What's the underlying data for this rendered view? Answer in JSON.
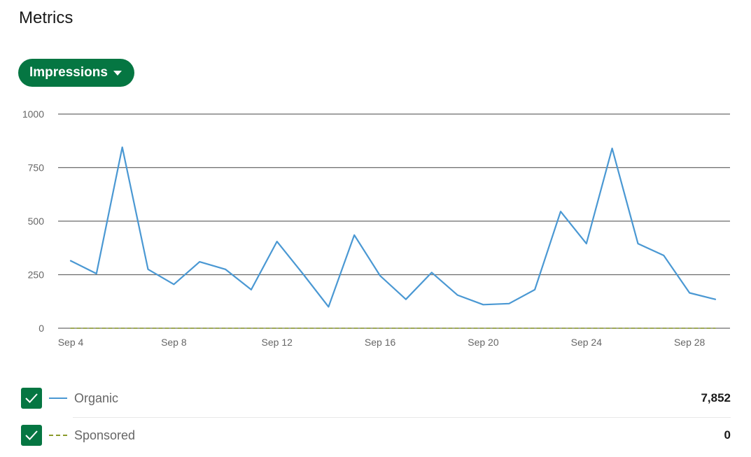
{
  "header": {
    "title": "Metrics"
  },
  "metric_selector": {
    "label": "Impressions",
    "icon": "caret-down-icon"
  },
  "colors": {
    "accent": "#057642",
    "organic": "#4a98d3",
    "sponsored": "#8a9a2a",
    "grid": "#6b6b6b"
  },
  "chart_data": {
    "type": "line",
    "title": "",
    "xlabel": "",
    "ylabel": "",
    "ylim": [
      0,
      1000
    ],
    "yticks": [
      0,
      250,
      500,
      750,
      1000
    ],
    "x": [
      "Sep 4",
      "Sep 5",
      "Sep 6",
      "Sep 7",
      "Sep 8",
      "Sep 9",
      "Sep 10",
      "Sep 11",
      "Sep 12",
      "Sep 13",
      "Sep 14",
      "Sep 15",
      "Sep 16",
      "Sep 17",
      "Sep 18",
      "Sep 19",
      "Sep 20",
      "Sep 21",
      "Sep 22",
      "Sep 23",
      "Sep 24",
      "Sep 25",
      "Sep 26",
      "Sep 27",
      "Sep 28",
      "Sep 29"
    ],
    "xticks": [
      "Sep 4",
      "Sep 8",
      "Sep 12",
      "Sep 16",
      "Sep 20",
      "Sep 24",
      "Sep 28"
    ],
    "grid": true,
    "series": [
      {
        "name": "Organic",
        "style": "solid",
        "values": [
          315,
          255,
          845,
          275,
          205,
          310,
          275,
          180,
          405,
          255,
          100,
          435,
          245,
          135,
          260,
          155,
          110,
          115,
          180,
          545,
          395,
          840,
          395,
          340,
          165,
          135
        ]
      },
      {
        "name": "Sponsored",
        "style": "dashed",
        "values": [
          0,
          0,
          0,
          0,
          0,
          0,
          0,
          0,
          0,
          0,
          0,
          0,
          0,
          0,
          0,
          0,
          0,
          0,
          0,
          0,
          0,
          0,
          0,
          0,
          0,
          0
        ]
      }
    ]
  },
  "legend": [
    {
      "label": "Organic",
      "total": "7,852"
    },
    {
      "label": "Sponsored",
      "total": "0"
    }
  ]
}
